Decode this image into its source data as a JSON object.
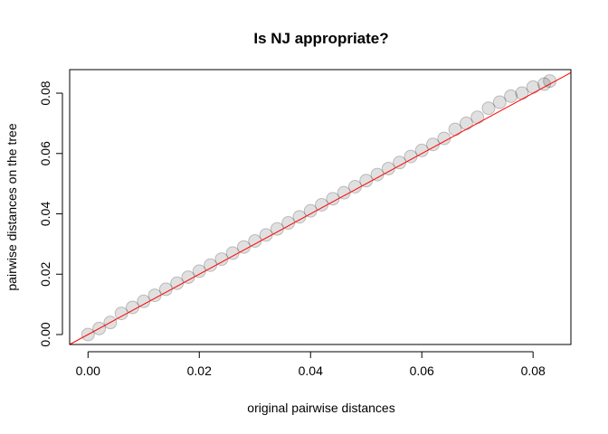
{
  "chart_data": {
    "type": "scatter",
    "title": "Is NJ appropriate?",
    "xlabel": "original pairwise distances",
    "ylabel": "pairwise distances on the tree",
    "xlim": [
      -0.0033,
      0.0868
    ],
    "ylim": [
      -0.0033,
      0.0878
    ],
    "x_ticks": [
      "0.00",
      "0.02",
      "0.04",
      "0.06",
      "0.08"
    ],
    "y_ticks": [
      "0.00",
      "0.02",
      "0.04",
      "0.06",
      "0.08"
    ],
    "grid": false,
    "point_color": "#000000",
    "point_alpha": 0.15,
    "reference_line": {
      "slope": 1,
      "intercept": 0,
      "color": "#ff0000"
    },
    "points": {
      "x": [
        0.0,
        0.002,
        0.004,
        0.006,
        0.008,
        0.01,
        0.012,
        0.014,
        0.016,
        0.018,
        0.02,
        0.022,
        0.024,
        0.026,
        0.028,
        0.03,
        0.032,
        0.034,
        0.036,
        0.038,
        0.04,
        0.042,
        0.044,
        0.046,
        0.048,
        0.05,
        0.052,
        0.054,
        0.056,
        0.058,
        0.06,
        0.062,
        0.064,
        0.066,
        0.068,
        0.07,
        0.072,
        0.074,
        0.076,
        0.078,
        0.08,
        0.082,
        0.083
      ],
      "y": [
        0.0,
        0.002,
        0.004,
        0.007,
        0.009,
        0.011,
        0.013,
        0.015,
        0.017,
        0.019,
        0.021,
        0.023,
        0.025,
        0.027,
        0.029,
        0.031,
        0.033,
        0.035,
        0.037,
        0.039,
        0.041,
        0.043,
        0.045,
        0.047,
        0.049,
        0.051,
        0.053,
        0.055,
        0.057,
        0.059,
        0.061,
        0.063,
        0.065,
        0.068,
        0.07,
        0.072,
        0.075,
        0.077,
        0.079,
        0.08,
        0.082,
        0.083,
        0.084
      ]
    }
  }
}
